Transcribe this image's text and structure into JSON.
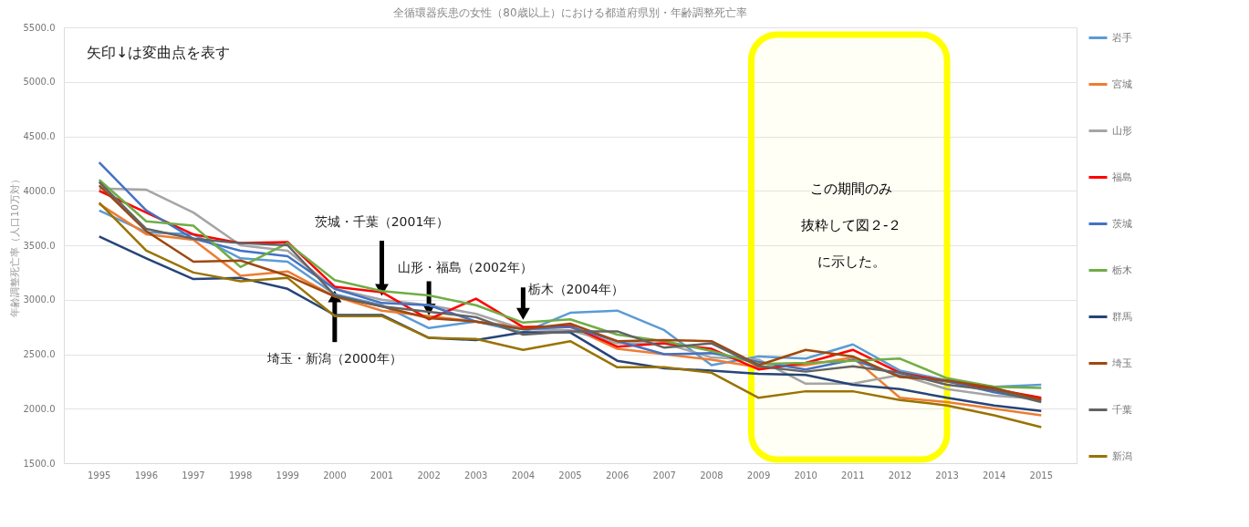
{
  "chart_data": {
    "type": "line",
    "title": "全循環器疾患の女性（80歳以上）における都道府県別・年齢調整死亡率",
    "ylabel": "年齢調整死亡率（人口10万対）",
    "categories": [
      "1995",
      "1996",
      "1997",
      "1998",
      "1999",
      "2000",
      "2001",
      "2002",
      "2003",
      "2004",
      "2005",
      "2006",
      "2007",
      "2008",
      "2009",
      "2010",
      "2011",
      "2012",
      "2013",
      "2014",
      "2015"
    ],
    "series": [
      {
        "name": "岩手",
        "color": "#5b9bd5",
        "values": [
          3820,
          3620,
          3600,
          3380,
          3350,
          3050,
          2950,
          2740,
          2800,
          2700,
          2880,
          2900,
          2720,
          2400,
          2480,
          2460,
          2590,
          2350,
          2260,
          2200,
          2220
        ]
      },
      {
        "name": "宮城",
        "color": "#ed7d31",
        "values": [
          3880,
          3600,
          3550,
          3220,
          3260,
          3030,
          2900,
          2850,
          2800,
          2750,
          2750,
          2550,
          2500,
          2450,
          2380,
          2400,
          2470,
          2100,
          2060,
          2000,
          1940
        ]
      },
      {
        "name": "山形",
        "color": "#a5a5a5",
        "values": [
          4020,
          4010,
          3800,
          3500,
          3450,
          3100,
          3000,
          2950,
          2870,
          2730,
          2720,
          2600,
          2600,
          2470,
          2450,
          2230,
          2230,
          2310,
          2180,
          2120,
          2090
        ]
      },
      {
        "name": "福島",
        "color": "#ff0000",
        "values": [
          4000,
          3800,
          3600,
          3520,
          3530,
          3120,
          3070,
          2820,
          3010,
          2750,
          2760,
          2570,
          2600,
          2550,
          2360,
          2420,
          2540,
          2330,
          2250,
          2180,
          2100
        ]
      },
      {
        "name": "茨城",
        "color": "#4472c4",
        "values": [
          4260,
          3820,
          3560,
          3450,
          3400,
          3100,
          2970,
          2950,
          2800,
          2730,
          2750,
          2620,
          2500,
          2510,
          2430,
          2360,
          2450,
          2300,
          2250,
          2150,
          2080
        ]
      },
      {
        "name": "栃木",
        "color": "#70ad47",
        "values": [
          4100,
          3720,
          3680,
          3300,
          3520,
          3180,
          3080,
          3040,
          2950,
          2790,
          2820,
          2680,
          2620,
          2530,
          2410,
          2420,
          2440,
          2460,
          2280,
          2200,
          2190
        ]
      },
      {
        "name": "群馬",
        "color": "#264478",
        "values": [
          3580,
          3380,
          3190,
          3200,
          3100,
          2860,
          2860,
          2650,
          2630,
          2700,
          2700,
          2440,
          2370,
          2350,
          2320,
          2310,
          2220,
          2180,
          2100,
          2030,
          1980
        ]
      },
      {
        "name": "埼玉",
        "color": "#9e480e",
        "values": [
          4050,
          3630,
          3350,
          3360,
          3220,
          3030,
          2940,
          2830,
          2800,
          2730,
          2780,
          2620,
          2630,
          2620,
          2400,
          2540,
          2480,
          2290,
          2260,
          2190,
          2080
        ]
      },
      {
        "name": "千葉",
        "color": "#636363",
        "values": [
          4080,
          3650,
          3560,
          3520,
          3500,
          3040,
          2940,
          2890,
          2840,
          2680,
          2710,
          2710,
          2560,
          2600,
          2390,
          2340,
          2390,
          2330,
          2220,
          2170,
          2060
        ]
      },
      {
        "name": "新潟",
        "color": "#997300",
        "values": [
          3890,
          3450,
          3250,
          3170,
          3200,
          2850,
          2850,
          2650,
          2640,
          2540,
          2620,
          2380,
          2380,
          2330,
          2100,
          2160,
          2160,
          2080,
          2030,
          1940,
          1830
        ]
      }
    ],
    "ylim": [
      1500,
      5500
    ],
    "yticks": [
      {
        "value": 1500,
        "label": "1500.0"
      },
      {
        "value": 2000,
        "label": "2000.0"
      },
      {
        "value": 2500,
        "label": "2500.0"
      },
      {
        "value": 3000,
        "label": "3000.0"
      },
      {
        "value": 3500,
        "label": "3500.0"
      },
      {
        "value": 4000,
        "label": "4000.0"
      },
      {
        "value": 4500,
        "label": "4500.0"
      },
      {
        "value": 5000,
        "label": "5000.0"
      },
      {
        "value": 5500,
        "label": "5500.0"
      }
    ],
    "grid": "y",
    "legend": "right",
    "marker": "none",
    "line_style": "solid",
    "annotations": [
      "矢印↓は変曲点を表す",
      {
        "text": "茨城・千葉（2001年）",
        "x": "2001",
        "y": 3040
      },
      {
        "text": "山形・福島（2002年）",
        "x": "2002",
        "y": 2860
      },
      {
        "text": "栃木（2004年）",
        "x": "2004",
        "y": 2820
      },
      {
        "text": "埼玉・新潟（2000年）",
        "x": "2000",
        "y": 3080
      }
    ],
    "bands": [
      {
        "axis": "x",
        "from": "2009",
        "to": "2013",
        "label": "この期間のみ抜粋して図２-２に示した。",
        "color": "#ffff00"
      }
    ]
  }
}
